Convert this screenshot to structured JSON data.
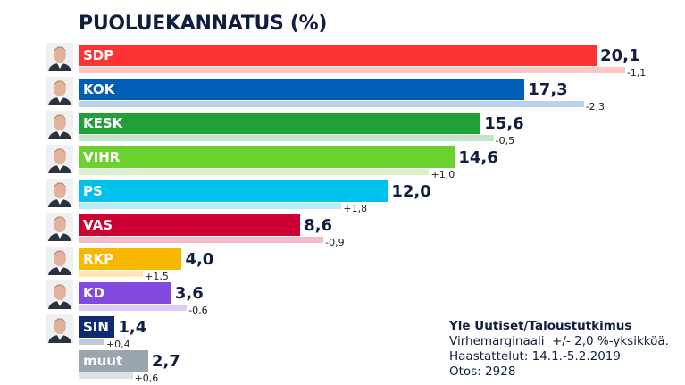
{
  "chart_data": {
    "type": "bar",
    "orientation": "horizontal",
    "title": "PUOLUEKANNATUS (%)",
    "xlim": [
      0,
      22
    ],
    "grid": false,
    "categories": [
      "SDP",
      "KOK",
      "KESK",
      "VIHR",
      "PS",
      "VAS",
      "RKP",
      "KD",
      "SIN",
      "muut"
    ],
    "series": [
      {
        "values": [
          20.1,
          17.3,
          15.6,
          14.6,
          12.0,
          8.6,
          4.0,
          3.6,
          1.4,
          2.7
        ]
      },
      {
        "values": [
          21.2,
          19.6,
          16.1,
          13.6,
          10.2,
          9.5,
          2.5,
          4.2,
          1.0,
          2.1
        ]
      }
    ],
    "value_labels": [
      "20,1",
      "17,3",
      "15,6",
      "14,6",
      "12,0",
      "8,6",
      "4,0",
      "3,6",
      "1,4",
      "2,7"
    ],
    "change_labels": [
      "-1,1",
      "-2,3",
      "-0,5",
      "+1,0",
      "+1,8",
      "-0,9",
      "+1,5",
      "-0,6",
      "+0,4",
      "+0,6"
    ],
    "colors": [
      "#ff3333",
      "#005eb8",
      "#21a038",
      "#6bd12e",
      "#00c0ee",
      "#cc0033",
      "#f8b800",
      "#8049e0",
      "#0e2a73",
      "#9aa5ae"
    ],
    "prev_colors": [
      "#ffc6c6",
      "#bcd2ea",
      "#c2e4c8",
      "#d6f2c6",
      "#b9ecfa",
      "#f2bccb",
      "#fde6b0",
      "#dccbf6",
      "#c0c8dc",
      "#dde3e3"
    ],
    "portraits": [
      true,
      true,
      true,
      true,
      true,
      true,
      true,
      true,
      true,
      false
    ]
  },
  "source": {
    "line1": "Yle Uutiset/Taloustutkimus",
    "line2": "Virhemarginaali  +/- 2,0 %-yksikköä.",
    "line3": "Haastattelut: 14.1.-5.2.2019",
    "line4": "Otos: 2928"
  }
}
